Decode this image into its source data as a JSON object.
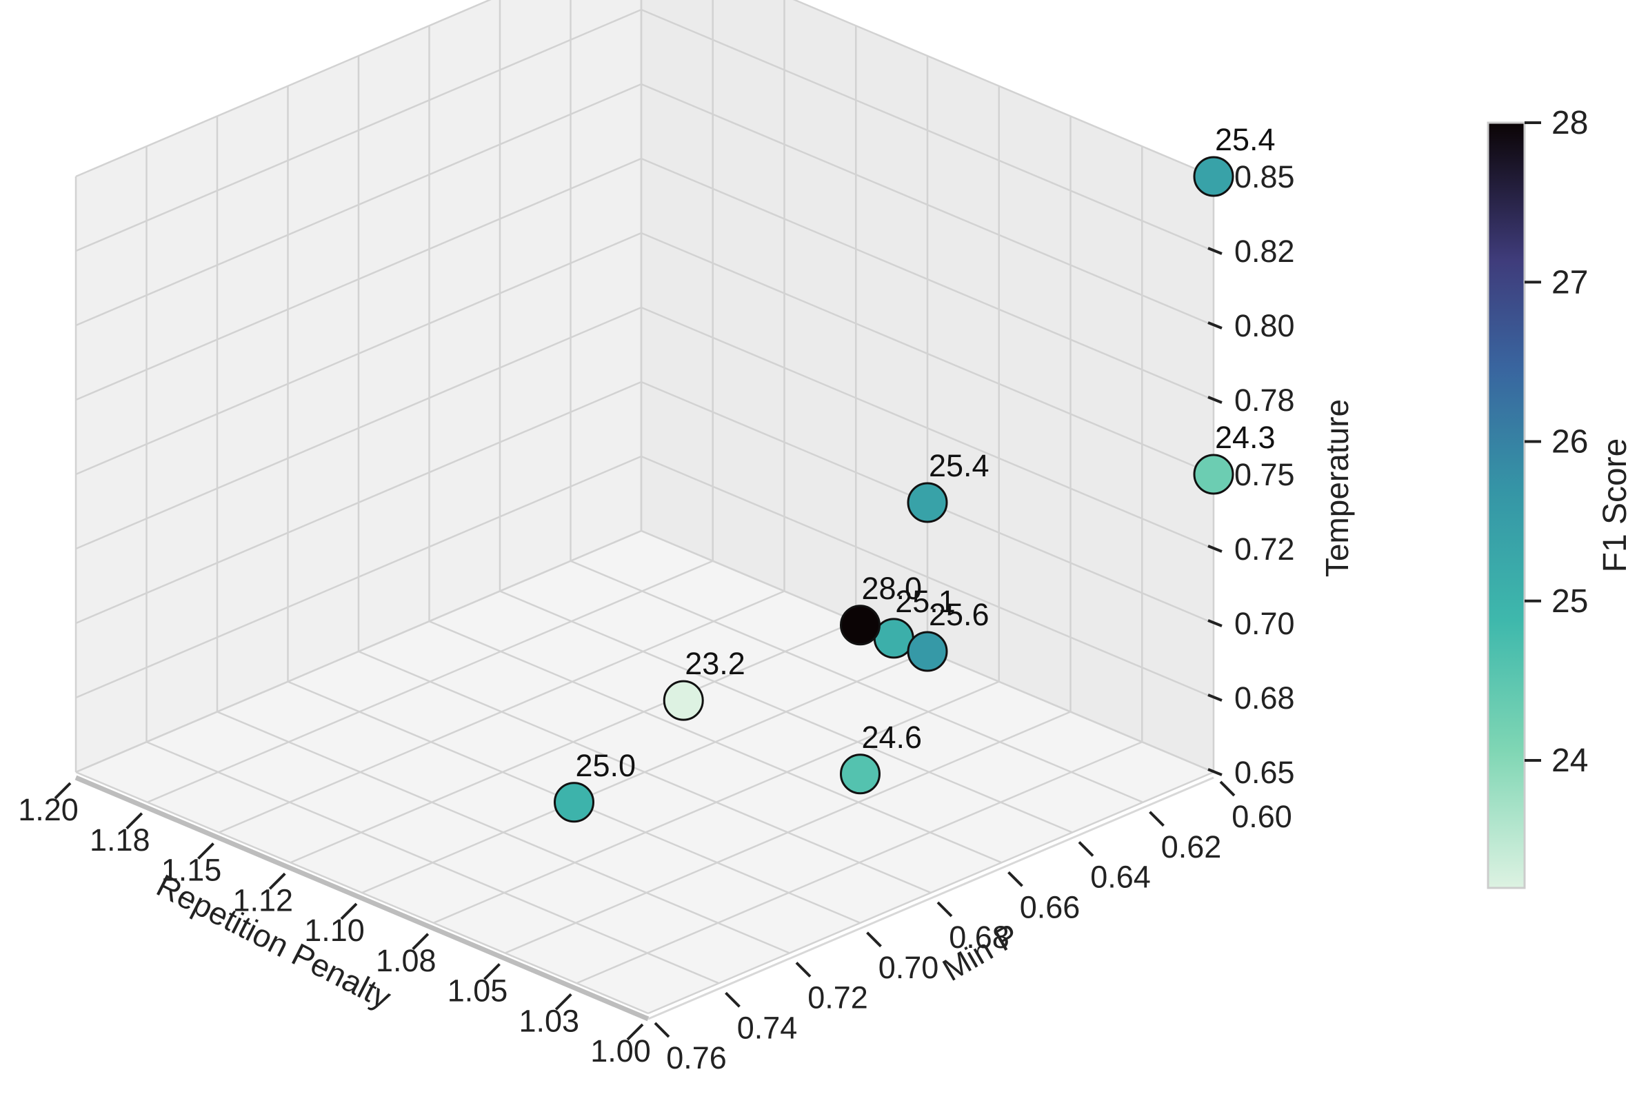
{
  "chart_data": {
    "type": "scatter",
    "projection": "3d",
    "x": {
      "label": "Repetition Penalty",
      "ticks": [
        "1.00",
        "1.03",
        "1.05",
        "1.08",
        "1.10",
        "1.12",
        "1.15",
        "1.18",
        "1.20"
      ],
      "lim": [
        1.0,
        1.2
      ]
    },
    "y": {
      "label": "Min P",
      "ticks": [
        "0.60",
        "0.62",
        "0.64",
        "0.66",
        "0.68",
        "0.70",
        "0.72",
        "0.74",
        "0.76"
      ],
      "lim": [
        0.6,
        0.76
      ]
    },
    "z": {
      "label": "Temperature",
      "ticks": [
        "0.65",
        "0.68",
        "0.70",
        "0.72",
        "0.75",
        "0.78",
        "0.80",
        "0.82",
        "0.85"
      ],
      "lim": [
        0.65,
        0.85
      ]
    },
    "points": [
      {
        "x": 1.0,
        "y": 0.6,
        "z": 0.85,
        "value": 25.4,
        "label": "25.4"
      },
      {
        "x": 1.0,
        "y": 0.6,
        "z": 0.75,
        "value": 24.3,
        "label": "24.3"
      },
      {
        "x": 1.1,
        "y": 0.6,
        "z": 0.7,
        "value": 25.4,
        "label": "25.4"
      },
      {
        "x": 1.05,
        "y": 0.65,
        "z": 0.7,
        "value": 25.1,
        "label": "25.1"
      },
      {
        "x": 1.1,
        "y": 0.6,
        "z": 0.65,
        "value": 25.6,
        "label": "25.6"
      },
      {
        "x": 1.0,
        "y": 0.7,
        "z": 0.75,
        "value": 28.0,
        "label": "28.0"
      },
      {
        "x": 1.0,
        "y": 0.7,
        "z": 0.7,
        "value": 24.6,
        "label": "24.6"
      },
      {
        "x": 1.0,
        "y": 0.75,
        "z": 0.75,
        "value": 23.2,
        "label": "23.2"
      },
      {
        "x": 1.1,
        "y": 0.7,
        "z": 0.65,
        "value": 25.0,
        "label": "25.0"
      }
    ],
    "colorbar": {
      "label": "F1 Score",
      "ticks": [
        "24",
        "25",
        "26",
        "27",
        "28"
      ],
      "min": 23.2,
      "max": 28.0,
      "colormap": "mako_r"
    },
    "grid": true
  }
}
